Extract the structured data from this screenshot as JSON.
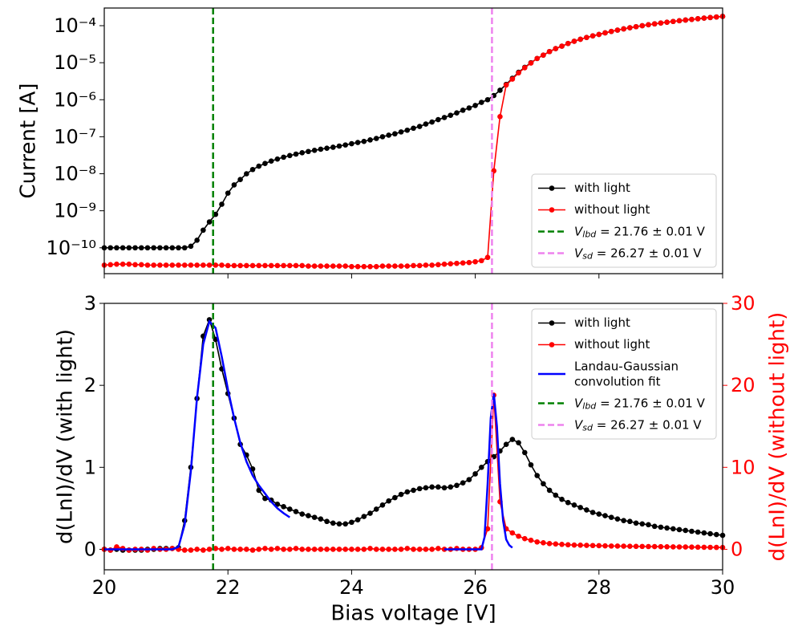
{
  "chart_data": [
    {
      "type": "line",
      "ylabel": "Current [A]",
      "ylog": true,
      "xlim": [
        20,
        30
      ],
      "xticks": [
        20,
        22,
        24,
        26,
        28,
        30
      ],
      "xtick_labels": false,
      "ylim": [
        2e-11,
        0.0003
      ],
      "yticks": [
        {
          "value": 1e-10,
          "label": "10⁻¹⁰"
        },
        {
          "value": 1e-09,
          "label": "10⁻⁹"
        },
        {
          "value": 1e-08,
          "label": "10⁻⁸"
        },
        {
          "value": 1e-07,
          "label": "10⁻⁷"
        },
        {
          "value": 1e-06,
          "label": "10⁻⁶"
        },
        {
          "value": 1e-05,
          "label": "10⁻⁵"
        },
        {
          "value": 0.0001,
          "label": "10⁻⁴"
        }
      ],
      "legend": "lower right",
      "x": [
        20,
        20.1,
        20.2,
        20.3,
        20.4,
        20.5,
        20.6,
        20.7,
        20.8,
        20.9,
        21,
        21.1,
        21.2,
        21.3,
        21.4,
        21.5,
        21.6,
        21.7,
        21.8,
        21.9,
        22,
        22.1,
        22.2,
        22.3,
        22.4,
        22.5,
        22.6,
        22.7,
        22.8,
        22.9,
        23,
        23.1,
        23.2,
        23.3,
        23.4,
        23.5,
        23.6,
        23.7,
        23.8,
        23.9,
        24,
        24.1,
        24.2,
        24.3,
        24.4,
        24.5,
        24.6,
        24.7,
        24.8,
        24.9,
        25,
        25.1,
        25.2,
        25.3,
        25.4,
        25.5,
        25.6,
        25.7,
        25.8,
        25.9,
        26,
        26.1,
        26.2,
        26.3,
        26.4,
        26.5,
        26.6,
        26.7,
        26.8,
        26.9,
        27,
        27.1,
        27.2,
        27.3,
        27.4,
        27.5,
        27.6,
        27.7,
        27.8,
        27.9,
        28,
        28.1,
        28.2,
        28.3,
        28.4,
        28.5,
        28.6,
        28.7,
        28.8,
        28.9,
        29,
        29.1,
        29.2,
        29.3,
        29.4,
        29.5,
        29.6,
        29.7,
        29.8,
        29.9,
        30
      ],
      "series": [
        {
          "name": "with light",
          "color": "#000000",
          "marker": true,
          "values": [
            1e-10,
            1e-10,
            1e-10,
            1e-10,
            1e-10,
            1e-10,
            1e-10,
            1e-10,
            1e-10,
            1e-10,
            1e-10,
            1e-10,
            1e-10,
            1e-10,
            1.1e-10,
            1.6e-10,
            3e-10,
            5e-10,
            8e-10,
            1.5e-09,
            3e-09,
            5e-09,
            7e-09,
            1e-08,
            1.3e-08,
            1.6e-08,
            1.9e-08,
            2.2e-08,
            2.5e-08,
            2.8e-08,
            3.1e-08,
            3.4e-08,
            3.7e-08,
            4e-08,
            4.3e-08,
            4.6e-08,
            4.9e-08,
            5.2e-08,
            5.6e-08,
            6e-08,
            6.5e-08,
            7e-08,
            7.5e-08,
            8.2e-08,
            9e-08,
            1e-07,
            1.1e-07,
            1.2e-07,
            1.35e-07,
            1.5e-07,
            1.7e-07,
            1.9e-07,
            2.2e-07,
            2.5e-07,
            2.9e-07,
            3.3e-07,
            3.8e-07,
            4.4e-07,
            5.2e-07,
            6e-07,
            7e-07,
            8.5e-07,
            1e-06,
            1.3e-06,
            1.8e-06,
            2.6e-06,
            3.8e-06,
            5.5e-06,
            7.5e-06,
            1e-05,
            1.3e-05,
            1.6e-05,
            2e-05,
            2.4e-05,
            2.8e-05,
            3.3e-05,
            3.8e-05,
            4.3e-05,
            4.8e-05,
            5.3e-05,
            5.8e-05,
            6.4e-05,
            7e-05,
            7.6e-05,
            8.2e-05,
            8.8e-05,
            9.4e-05,
            0.0001,
            0.000106,
            0.000112,
            0.000118,
            0.000124,
            0.00013,
            0.000136,
            0.000142,
            0.000148,
            0.000154,
            0.00016,
            0.000166,
            0.000172,
            0.000178
          ]
        },
        {
          "name": "without light",
          "color": "#ff0000",
          "marker": true,
          "values": [
            3.4e-11,
            3.5e-11,
            3.6e-11,
            3.6e-11,
            3.6e-11,
            3.5e-11,
            3.5e-11,
            3.4e-11,
            3.4e-11,
            3.4e-11,
            3.4e-11,
            3.4e-11,
            3.4e-11,
            3.4e-11,
            3.4e-11,
            3.4e-11,
            3.4e-11,
            3.4e-11,
            3.4e-11,
            3.4e-11,
            3.3e-11,
            3.3e-11,
            3.3e-11,
            3.3e-11,
            3.3e-11,
            3.3e-11,
            3.3e-11,
            3.3e-11,
            3.3e-11,
            3.3e-11,
            3.3e-11,
            3.3e-11,
            3.3e-11,
            3.2e-11,
            3.2e-11,
            3.2e-11,
            3.2e-11,
            3.2e-11,
            3.2e-11,
            3.2e-11,
            3.1e-11,
            3.1e-11,
            3.1e-11,
            3.1e-11,
            3.1e-11,
            3.2e-11,
            3.2e-11,
            3.2e-11,
            3.2e-11,
            3.2e-11,
            3.3e-11,
            3.3e-11,
            3.4e-11,
            3.4e-11,
            3.5e-11,
            3.6e-11,
            3.7e-11,
            3.8e-11,
            3.9e-11,
            4e-11,
            4.2e-11,
            4.5e-11,
            5.5e-11,
            1.2e-08,
            3.5e-07,
            2.5e-06,
            3.6e-06,
            5.3e-06,
            7.3e-06,
            9.8e-06,
            1.3e-05,
            1.6e-05,
            2e-05,
            2.4e-05,
            2.8e-05,
            3.3e-05,
            3.8e-05,
            4.3e-05,
            4.8e-05,
            5.3e-05,
            5.8e-05,
            6.4e-05,
            7e-05,
            7.6e-05,
            8.2e-05,
            8.8e-05,
            9.4e-05,
            0.0001,
            0.000106,
            0.000112,
            0.000118,
            0.000124,
            0.00013,
            0.000136,
            0.000142,
            0.000148,
            0.000154,
            0.00016,
            0.000166,
            0.000172,
            0.000178
          ]
        }
      ],
      "vlines": [
        {
          "x": 21.76,
          "label": "V_lbd = 21.76 ± 0.01 V",
          "color": "#008000"
        },
        {
          "x": 26.27,
          "label": "V_sd = 26.27 ± 0.01 V",
          "color": "#ee82ee"
        }
      ]
    },
    {
      "type": "line",
      "xlabel": "Bias voltage [V]",
      "ylabel": "d(LnI)/dV (with light)",
      "y2label": "d(LnI)/dV (without light)",
      "y2color": "#ff0000",
      "xlim": [
        20,
        30
      ],
      "xticks": [
        20,
        22,
        24,
        26,
        28,
        30
      ],
      "ylim": [
        -0.25,
        3
      ],
      "yticks": [
        0,
        1,
        2,
        3
      ],
      "y2lim": [
        -2.5,
        30
      ],
      "y2ticks": [
        0,
        10,
        20,
        30
      ],
      "legend": "upper right",
      "x": [
        20,
        20.1,
        20.2,
        20.3,
        20.4,
        20.5,
        20.6,
        20.7,
        20.8,
        20.9,
        21,
        21.1,
        21.2,
        21.3,
        21.4,
        21.5,
        21.6,
        21.7,
        21.8,
        21.9,
        22,
        22.1,
        22.2,
        22.3,
        22.4,
        22.5,
        22.6,
        22.7,
        22.8,
        22.9,
        23,
        23.1,
        23.2,
        23.3,
        23.4,
        23.5,
        23.6,
        23.7,
        23.8,
        23.9,
        24,
        24.1,
        24.2,
        24.3,
        24.4,
        24.5,
        24.6,
        24.7,
        24.8,
        24.9,
        25,
        25.1,
        25.2,
        25.3,
        25.4,
        25.5,
        25.6,
        25.7,
        25.8,
        25.9,
        26,
        26.1,
        26.2,
        26.3,
        26.4,
        26.5,
        26.6,
        26.7,
        26.8,
        26.9,
        27,
        27.1,
        27.2,
        27.3,
        27.4,
        27.5,
        27.6,
        27.7,
        27.8,
        27.9,
        28,
        28.1,
        28.2,
        28.3,
        28.4,
        28.5,
        28.6,
        28.7,
        28.8,
        28.9,
        29,
        29.1,
        29.2,
        29.3,
        29.4,
        29.5,
        29.6,
        29.7,
        29.8,
        29.9,
        30
      ],
      "series": [
        {
          "name": "with light",
          "color": "#000000",
          "marker": true,
          "values": [
            0,
            -0.01,
            0,
            -0.01,
            -0.01,
            -0.01,
            -0.01,
            0,
            0,
            0.01,
            0.01,
            0.01,
            0.02,
            0.35,
            1.0,
            1.84,
            2.6,
            2.8,
            2.56,
            2.2,
            1.9,
            1.6,
            1.28,
            1.15,
            0.98,
            0.72,
            0.62,
            0.6,
            0.55,
            0.52,
            0.49,
            0.46,
            0.43,
            0.41,
            0.39,
            0.37,
            0.34,
            0.32,
            0.31,
            0.31,
            0.33,
            0.36,
            0.4,
            0.44,
            0.49,
            0.54,
            0.59,
            0.63,
            0.67,
            0.7,
            0.72,
            0.74,
            0.75,
            0.76,
            0.76,
            0.75,
            0.76,
            0.78,
            0.81,
            0.85,
            0.92,
            1.0,
            1.07,
            1.13,
            1.2,
            1.28,
            1.34,
            1.3,
            1.18,
            1.03,
            0.9,
            0.8,
            0.72,
            0.66,
            0.61,
            0.57,
            0.54,
            0.51,
            0.48,
            0.45,
            0.43,
            0.41,
            0.39,
            0.37,
            0.35,
            0.34,
            0.32,
            0.31,
            0.3,
            0.28,
            0.27,
            0.26,
            0.25,
            0.24,
            0.23,
            0.22,
            0.21,
            0.2,
            0.19,
            0.18,
            0.17
          ]
        },
        {
          "name": "without light",
          "color": "#ff0000",
          "marker": true,
          "axis": "y2",
          "values": [
            0,
            -0.1,
            0.3,
            0.1,
            -0.1,
            0,
            0,
            -0.1,
            0.1,
            0,
            0,
            0.1,
            0,
            -0.1,
            -0.1,
            0,
            -0.1,
            0,
            0.1,
            0,
            0.1,
            0,
            0,
            0,
            -0.1,
            0,
            0.1,
            0,
            0.1,
            0,
            0,
            0.1,
            0,
            0,
            0,
            0,
            0,
            0,
            0,
            0,
            0,
            0,
            0,
            0.1,
            0,
            0,
            0,
            0,
            0,
            0.1,
            0,
            0,
            0,
            0,
            0.1,
            0,
            0,
            0.1,
            0,
            0,
            0,
            0.2,
            2.5,
            18.8,
            5.8,
            2.5,
            2.0,
            1.6,
            1.3,
            1.1,
            0.9,
            0.8,
            0.7,
            0.65,
            0.6,
            0.55,
            0.52,
            0.5,
            0.48,
            0.46,
            0.44,
            0.42,
            0.4,
            0.39,
            0.38,
            0.37,
            0.36,
            0.35,
            0.34,
            0.33,
            0.32,
            0.31,
            0.3,
            0.29,
            0.28,
            0.27,
            0.26,
            0.25,
            0.24,
            0.23,
            0.22
          ]
        },
        {
          "name": "Landau-Gaussian\nconvolution fit",
          "color": "#0000ff",
          "width": 2.5,
          "x": [
            20,
            20.1,
            20.2,
            20.3,
            20.4,
            20.5,
            20.6,
            20.7,
            20.8,
            20.9,
            21,
            21.1,
            21.2,
            21.3,
            21.4,
            21.5,
            21.6,
            21.7,
            21.8,
            21.9,
            22,
            22.1,
            22.2,
            22.3,
            22.4,
            22.5,
            22.6,
            22.7,
            22.8,
            22.9,
            23
          ],
          "values": [
            0,
            0,
            0,
            0,
            0,
            0,
            0,
            0,
            0,
            0,
            0,
            0,
            0.03,
            0.3,
            0.95,
            1.85,
            2.5,
            2.78,
            2.7,
            2.35,
            1.95,
            1.6,
            1.3,
            1.07,
            0.9,
            0.78,
            0.68,
            0.58,
            0.5,
            0.44,
            0.39
          ]
        },
        {
          "color": "#0000ff",
          "width": 2.5,
          "axis": "y2",
          "x": [
            25.5,
            25.6,
            25.7,
            25.8,
            25.9,
            26,
            26.1,
            26.15,
            26.2,
            26.25,
            26.3,
            26.35,
            26.4,
            26.45,
            26.5,
            26.55,
            26.6
          ],
          "values": [
            0,
            0,
            0,
            0,
            0,
            0,
            0,
            1.5,
            8,
            16,
            19,
            15,
            8,
            3.5,
            1.2,
            0.5,
            0.2
          ]
        }
      ],
      "vlines": [
        {
          "x": 21.76,
          "label": "V_lbd = 21.76 ± 0.01 V",
          "color": "#008000"
        },
        {
          "x": 26.27,
          "label": "V_sd = 26.27 ± 0.01 V",
          "color": "#ee82ee"
        }
      ]
    }
  ]
}
